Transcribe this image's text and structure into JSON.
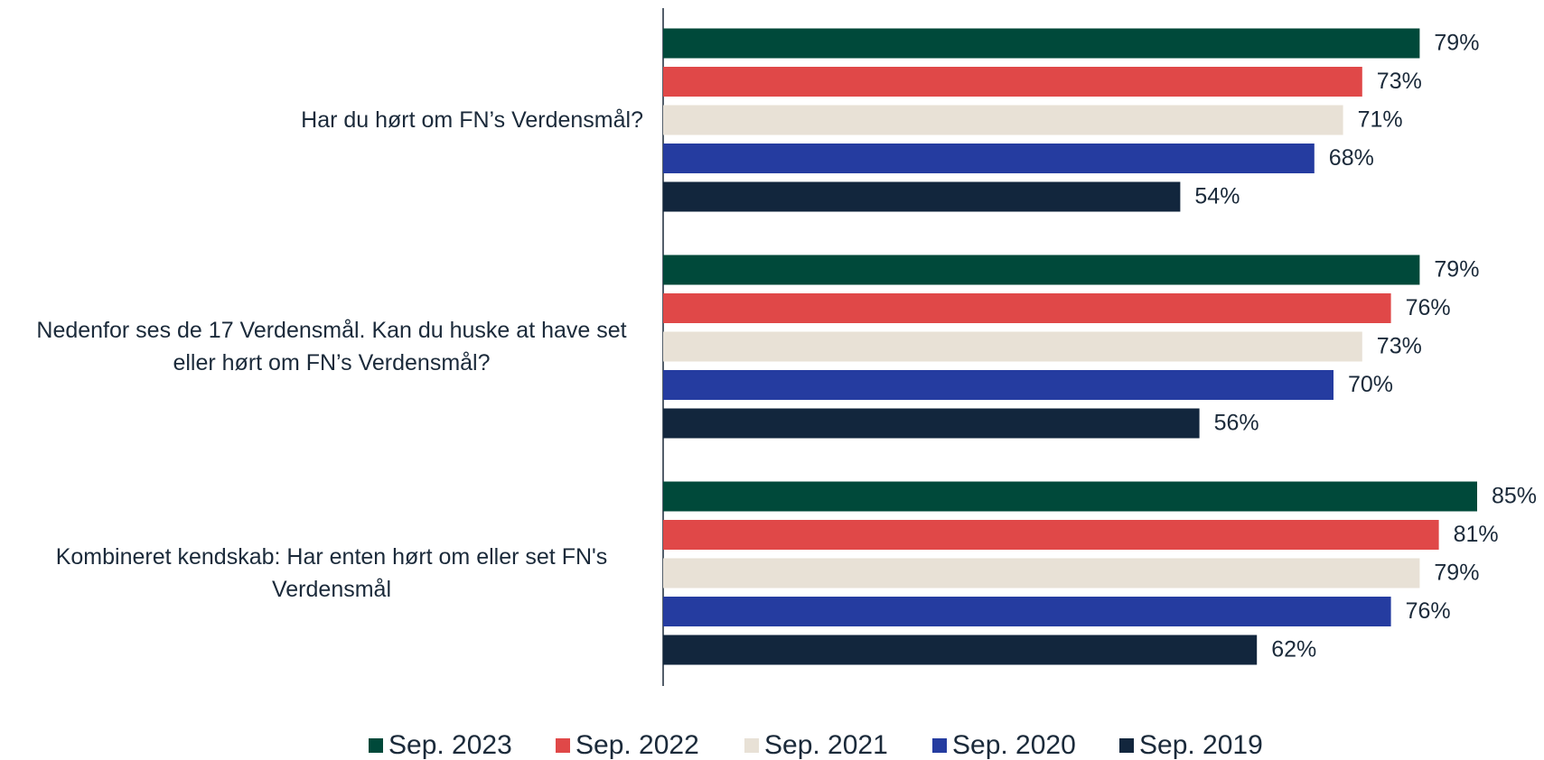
{
  "chart_data": {
    "type": "hbar",
    "categories": [
      "Har du hørt om FN’s Verdensmål?",
      "Nedenfor ses de 17 Verdensmål. Kan du huske at have set eller hørt om FN’s Verdensmål?",
      "Kombineret kendskab: Har enten hørt om eller set FN's Verdensmål"
    ],
    "series": [
      {
        "name": "Sep. 2023",
        "color": "#00493a",
        "values": [
          79,
          79,
          85
        ],
        "value_labels": [
          "79%",
          "79%",
          "85%"
        ]
      },
      {
        "name": "Sep. 2022",
        "color": "#e04848",
        "values": [
          73,
          76,
          81
        ],
        "value_labels": [
          "73%",
          "76%",
          "81%"
        ]
      },
      {
        "name": "Sep. 2021",
        "color": "#e8e1d6",
        "values": [
          71,
          73,
          79
        ],
        "value_labels": [
          "71%",
          "73%",
          "79%"
        ]
      },
      {
        "name": "Sep. 2020",
        "color": "#253ca0",
        "values": [
          68,
          70,
          76
        ],
        "value_labels": [
          "68%",
          "70%",
          "76%"
        ]
      },
      {
        "name": "Sep. 2019",
        "color": "#12263d",
        "values": [
          54,
          56,
          62
        ],
        "value_labels": [
          "54%",
          "56%",
          "62%"
        ]
      }
    ],
    "legend": "bottom"
  }
}
